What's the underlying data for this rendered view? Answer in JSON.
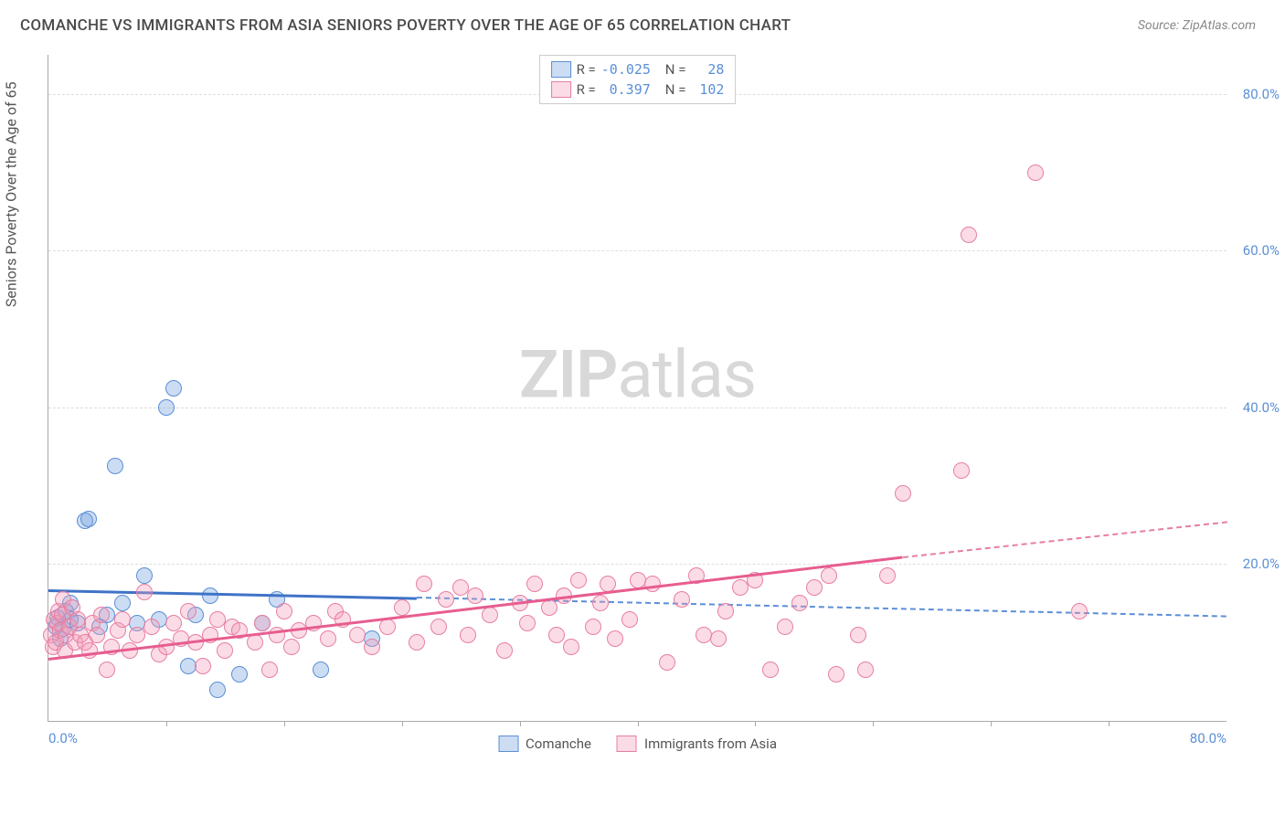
{
  "title": "COMANCHE VS IMMIGRANTS FROM ASIA SENIORS POVERTY OVER THE AGE OF 65 CORRELATION CHART",
  "source": "Source: ZipAtlas.com",
  "watermark_a": "ZIP",
  "watermark_b": "atlas",
  "y_axis_label": "Seniors Poverty Over the Age of 65",
  "chart": {
    "type": "scatter",
    "xlim": [
      0,
      80
    ],
    "ylim": [
      0,
      85
    ],
    "x_ticks": [
      0,
      80
    ],
    "x_tick_labels": [
      "0.0%",
      "80.0%"
    ],
    "y_ticks": [
      20,
      40,
      60,
      80
    ],
    "y_tick_labels": [
      "20.0%",
      "40.0%",
      "60.0%",
      "80.0%"
    ],
    "x_minor_ticks": [
      8,
      16,
      24,
      32,
      40,
      48,
      56,
      64,
      72
    ],
    "background_color": "#ffffff",
    "grid_color": "#dddddd",
    "marker_radius": 9,
    "colors": {
      "blue_fill": "rgba(108,158,221,0.35)",
      "blue_stroke": "#5b8fd6",
      "pink_fill": "rgba(244,156,183,0.35)",
      "pink_stroke": "#e77ea2",
      "blue_line": "#3f73c7",
      "pink_line": "#e75d8f",
      "tick_text": "#5b8fd6"
    },
    "series": [
      {
        "name": "Comanche",
        "color": "blue",
        "R": "-0.025",
        "N": "28",
        "trend_solid": {
          "x1": 0,
          "y1": 16.8,
          "x2": 25,
          "y2": 15.8
        },
        "trend_dashed": {
          "x1": 25,
          "y1": 15.8,
          "x2": 80,
          "y2": 13.4
        },
        "points": [
          [
            0.5,
            12.0
          ],
          [
            0.6,
            13.2
          ],
          [
            0.8,
            10.5
          ],
          [
            1.0,
            11.8
          ],
          [
            1.2,
            14.0
          ],
          [
            1.5,
            13.0
          ],
          [
            1.5,
            15.0
          ],
          [
            2.0,
            12.5
          ],
          [
            2.5,
            25.5
          ],
          [
            2.7,
            25.8
          ],
          [
            3.5,
            12.0
          ],
          [
            4.0,
            13.5
          ],
          [
            4.5,
            32.5
          ],
          [
            5.0,
            15.0
          ],
          [
            6.0,
            12.5
          ],
          [
            6.5,
            18.5
          ],
          [
            7.5,
            13.0
          ],
          [
            8.0,
            40.0
          ],
          [
            8.5,
            42.5
          ],
          [
            9.5,
            7.0
          ],
          [
            10.0,
            13.5
          ],
          [
            11.0,
            16.0
          ],
          [
            11.5,
            4.0
          ],
          [
            13.0,
            6.0
          ],
          [
            14.5,
            12.5
          ],
          [
            15.5,
            15.5
          ],
          [
            18.5,
            6.5
          ],
          [
            22.0,
            10.5
          ]
        ]
      },
      {
        "name": "Immigrants from Asia",
        "color": "pink",
        "R": "0.397",
        "N": "102",
        "trend_solid": {
          "x1": 0,
          "y1": 8.0,
          "x2": 58,
          "y2": 21.0
        },
        "trend_dashed": {
          "x1": 58,
          "y1": 21.0,
          "x2": 80,
          "y2": 25.5
        },
        "points": [
          [
            0.2,
            11.0
          ],
          [
            0.3,
            9.5
          ],
          [
            0.4,
            13.0
          ],
          [
            0.5,
            10.0
          ],
          [
            0.6,
            12.5
          ],
          [
            0.7,
            14.0
          ],
          [
            0.8,
            11.5
          ],
          [
            0.9,
            13.5
          ],
          [
            1.0,
            15.5
          ],
          [
            1.1,
            9.0
          ],
          [
            1.2,
            11.0
          ],
          [
            1.4,
            12.0
          ],
          [
            1.6,
            14.5
          ],
          [
            1.8,
            10.0
          ],
          [
            2.0,
            13.0
          ],
          [
            2.2,
            11.0
          ],
          [
            2.5,
            10.0
          ],
          [
            2.8,
            9.0
          ],
          [
            3.0,
            12.5
          ],
          [
            3.3,
            11.0
          ],
          [
            3.6,
            13.5
          ],
          [
            4.0,
            6.5
          ],
          [
            4.3,
            9.5
          ],
          [
            4.7,
            11.5
          ],
          [
            5.0,
            13.0
          ],
          [
            5.5,
            9.0
          ],
          [
            6.0,
            11.0
          ],
          [
            6.5,
            16.5
          ],
          [
            7.0,
            12.0
          ],
          [
            7.5,
            8.5
          ],
          [
            8.0,
            9.5
          ],
          [
            8.5,
            12.5
          ],
          [
            9.0,
            10.5
          ],
          [
            9.5,
            14.0
          ],
          [
            10.0,
            10.0
          ],
          [
            10.5,
            7.0
          ],
          [
            11.0,
            11.0
          ],
          [
            11.5,
            13.0
          ],
          [
            12.0,
            9.0
          ],
          [
            12.5,
            12.0
          ],
          [
            13.0,
            11.5
          ],
          [
            14.0,
            10.0
          ],
          [
            14.5,
            12.5
          ],
          [
            15.0,
            6.5
          ],
          [
            15.5,
            11.0
          ],
          [
            16.0,
            14.0
          ],
          [
            16.5,
            9.5
          ],
          [
            17.0,
            11.5
          ],
          [
            18.0,
            12.5
          ],
          [
            19.0,
            10.5
          ],
          [
            19.5,
            14.0
          ],
          [
            20.0,
            13.0
          ],
          [
            21.0,
            11.0
          ],
          [
            22.0,
            9.5
          ],
          [
            23.0,
            12.0
          ],
          [
            24.0,
            14.5
          ],
          [
            25.0,
            10.0
          ],
          [
            25.5,
            17.5
          ],
          [
            26.5,
            12.0
          ],
          [
            27.0,
            15.5
          ],
          [
            28.0,
            17.0
          ],
          [
            28.5,
            11.0
          ],
          [
            29.0,
            16.0
          ],
          [
            30.0,
            13.5
          ],
          [
            31.0,
            9.0
          ],
          [
            32.0,
            15.0
          ],
          [
            32.5,
            12.5
          ],
          [
            33.0,
            17.5
          ],
          [
            34.0,
            14.5
          ],
          [
            34.5,
            11.0
          ],
          [
            35.0,
            16.0
          ],
          [
            35.5,
            9.5
          ],
          [
            36.0,
            18.0
          ],
          [
            37.0,
            12.0
          ],
          [
            37.5,
            15.0
          ],
          [
            38.0,
            17.5
          ],
          [
            38.5,
            10.5
          ],
          [
            39.5,
            13.0
          ],
          [
            40.0,
            18.0
          ],
          [
            41.0,
            17.5
          ],
          [
            42.0,
            7.5
          ],
          [
            43.0,
            15.5
          ],
          [
            44.0,
            18.5
          ],
          [
            44.5,
            11.0
          ],
          [
            45.5,
            10.5
          ],
          [
            46.0,
            14.0
          ],
          [
            47.0,
            17.0
          ],
          [
            48.0,
            18.0
          ],
          [
            49.0,
            6.5
          ],
          [
            50.0,
            12.0
          ],
          [
            51.0,
            15.0
          ],
          [
            52.0,
            17.0
          ],
          [
            53.0,
            18.5
          ],
          [
            53.5,
            6.0
          ],
          [
            55.0,
            11.0
          ],
          [
            55.5,
            6.5
          ],
          [
            57.0,
            18.5
          ],
          [
            58.0,
            29.0
          ],
          [
            62.0,
            32.0
          ],
          [
            62.5,
            62.0
          ],
          [
            67.0,
            70.0
          ],
          [
            70.0,
            14.0
          ]
        ]
      }
    ]
  },
  "legend_bottom": [
    {
      "label": "Comanche",
      "color": "blue"
    },
    {
      "label": "Immigrants from Asia",
      "color": "pink"
    }
  ]
}
